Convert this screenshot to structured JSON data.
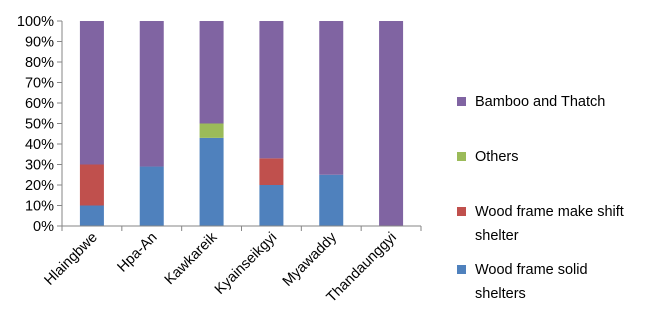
{
  "chart_data": {
    "type": "bar",
    "stacked": true,
    "percent": true,
    "categories": [
      "Hlaingbwe",
      "Hpa-An",
      "Kawkareik",
      "Kyainseikgyi",
      "Myawaddy",
      "Thandaunggyi"
    ],
    "series": [
      {
        "name": "Wood frame solid shelters",
        "color": "#4f81bd",
        "values": [
          10,
          29,
          43,
          20,
          25,
          0
        ]
      },
      {
        "name": "Wood frame make shift shelter",
        "color": "#c0504d",
        "values": [
          20,
          0,
          0,
          13,
          0,
          0
        ]
      },
      {
        "name": "Others",
        "color": "#9bbb59",
        "values": [
          0,
          0,
          7,
          0,
          0,
          0
        ]
      },
      {
        "name": "Bamboo and Thatch",
        "color": "#8064a2",
        "values": [
          70,
          71,
          50,
          67,
          75,
          100
        ]
      }
    ],
    "yticks": [
      "0%",
      "10%",
      "20%",
      "30%",
      "40%",
      "50%",
      "60%",
      "70%",
      "80%",
      "90%",
      "100%"
    ],
    "ylim": [
      0,
      100
    ],
    "legend_position": "right",
    "legend_order": [
      "Bamboo and Thatch",
      "Others",
      "Wood frame make shift shelter",
      "Wood frame solid shelters"
    ],
    "legend_labels": {
      "Bamboo and Thatch": [
        "Bamboo and Thatch"
      ],
      "Others": [
        "Others"
      ],
      "Wood frame make shift shelter": [
        "Wood frame make shift",
        "shelter"
      ],
      "Wood frame solid shelters": [
        "Wood frame solid",
        "shelters"
      ]
    },
    "axis_color": "#868686"
  }
}
